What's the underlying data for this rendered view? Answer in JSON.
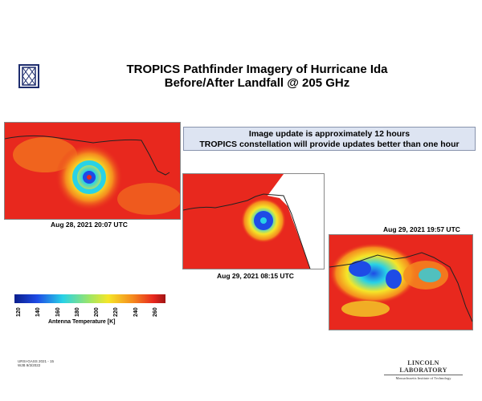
{
  "title": {
    "line1": "TROPICS Pathfinder Imagery of Hurricane Ida",
    "line2": "Before/After Landfall @ 205 GHz"
  },
  "callout": {
    "line1": "Image update is approximately 12 hours",
    "line2": "TROPICS constellation will provide updates better than one hour"
  },
  "panels": [
    {
      "caption": "Aug 28, 2021 20:07 UTC"
    },
    {
      "caption": "Aug 29, 2021  08:15 UTC"
    },
    {
      "caption": "Aug 29, 2021  19:57 UTC"
    }
  ],
  "colorbar": {
    "ticks": [
      "120",
      "140",
      "160",
      "180",
      "200",
      "220",
      "240",
      "260"
    ],
    "label": "Antenna Temperature [K]"
  },
  "footnote": {
    "line1": "URSI-GASS 2021 - 15",
    "line2": "WJB 9/3/2022"
  },
  "brand": {
    "name": "LINCOLN LABORATORY",
    "sub": "Massachusetts Institute of Technology"
  },
  "colors": {
    "warm": "#e8281e",
    "orange": "#f58c1e",
    "yellow": "#f5e628",
    "cyan": "#28d2e6",
    "blue": "#1e4be6",
    "navy": "#1e2d6e",
    "callout_bg": "#dde4f2"
  }
}
